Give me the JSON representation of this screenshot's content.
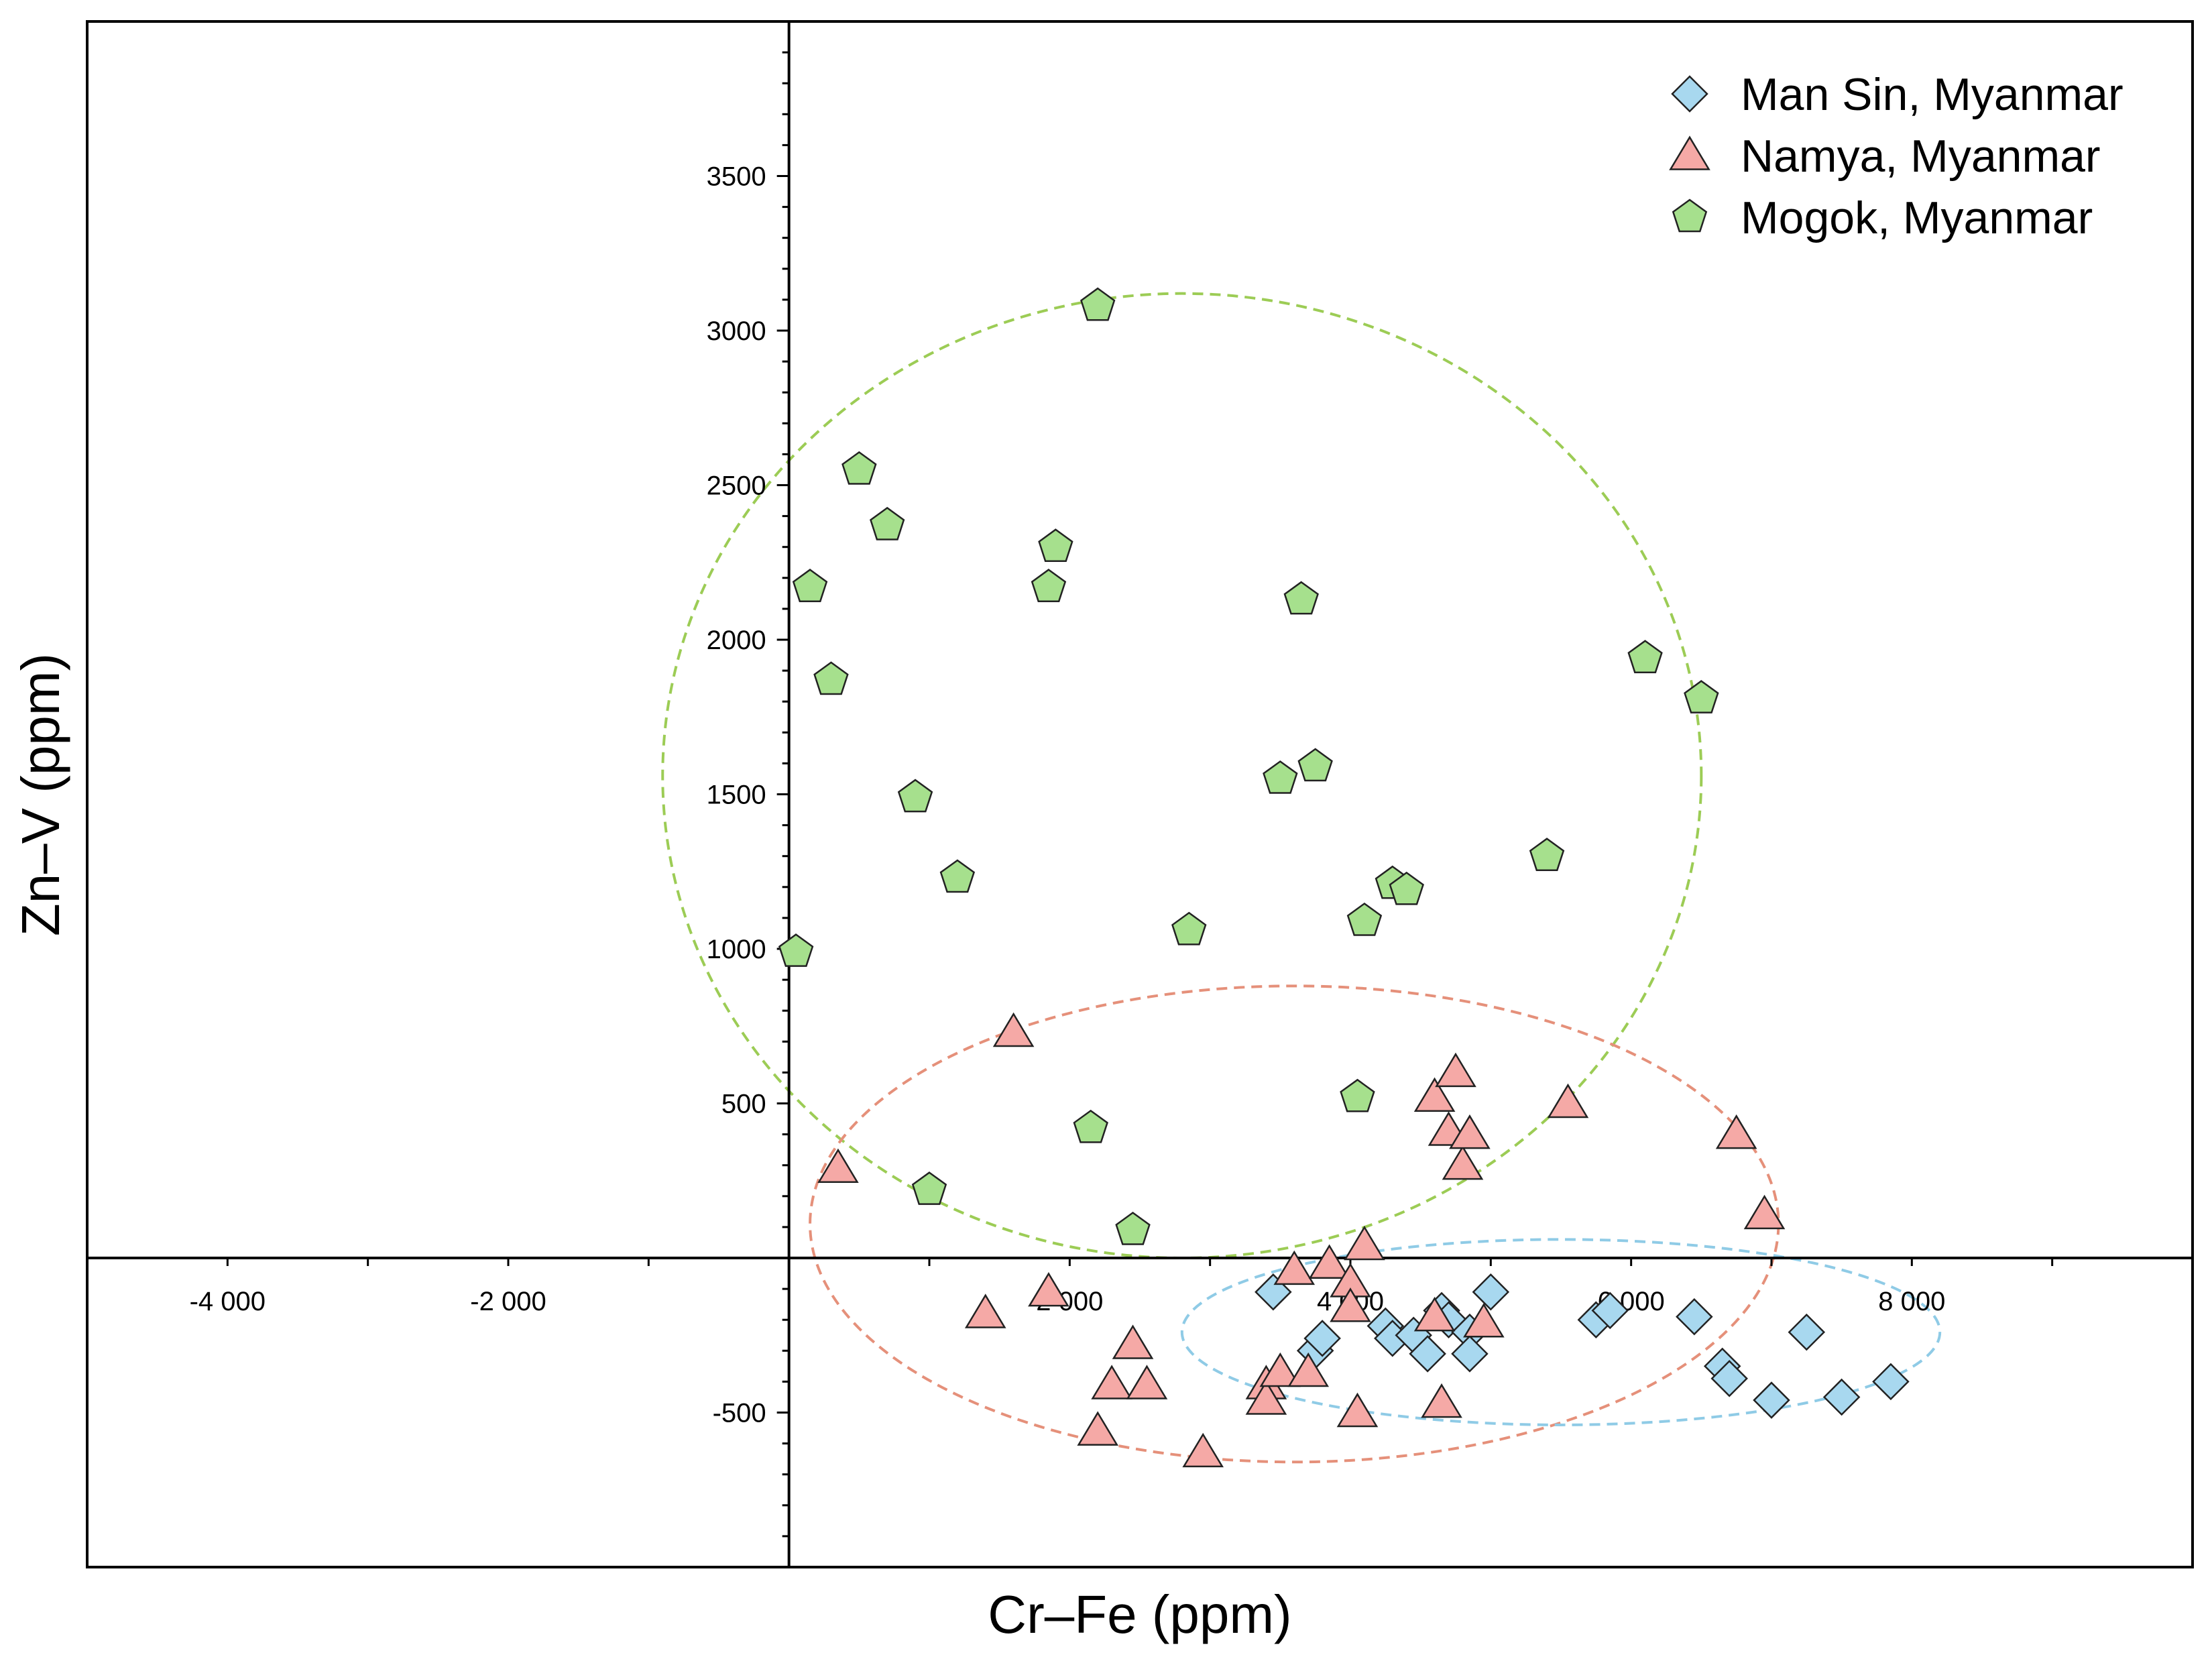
{
  "chart_data": {
    "type": "scatter",
    "title": "",
    "xlabel": "Cr–Fe (ppm)",
    "ylabel": "Zn–V (ppm)",
    "xlim": [
      -5000,
      10000
    ],
    "ylim": [
      -1000,
      4000
    ],
    "x_ticks": [
      {
        "value": -4000,
        "label": "-4 000"
      },
      {
        "value": -2000,
        "label": "-2 000"
      },
      {
        "value": 2000,
        "label": "2 000"
      },
      {
        "value": 4000,
        "label": "4 000"
      },
      {
        "value": 6000,
        "label": "6 000"
      },
      {
        "value": 8000,
        "label": "8 000"
      }
    ],
    "y_ticks": [
      {
        "value": -500,
        "label": "-500"
      },
      {
        "value": 500,
        "label": "500"
      },
      {
        "value": 1000,
        "label": "1000"
      },
      {
        "value": 1500,
        "label": "1500"
      },
      {
        "value": 2000,
        "label": "2000"
      },
      {
        "value": 2500,
        "label": "2500"
      },
      {
        "value": 3000,
        "label": "3000"
      },
      {
        "value": 3500,
        "label": "3500"
      }
    ],
    "grid": false,
    "legend_position": "top-right",
    "series": [
      {
        "name": "Man Sin, Myanmar",
        "marker": "diamond",
        "color": "#a8d8ef",
        "points": [
          [
            3450,
            -110
          ],
          [
            3750,
            -300
          ],
          [
            3800,
            -260
          ],
          [
            4250,
            -220
          ],
          [
            4300,
            -260
          ],
          [
            4450,
            -250
          ],
          [
            4550,
            -310
          ],
          [
            4650,
            -170
          ],
          [
            4700,
            -200
          ],
          [
            4850,
            -240
          ],
          [
            4850,
            -310
          ],
          [
            5000,
            -110
          ],
          [
            5750,
            -200
          ],
          [
            5850,
            -170
          ],
          [
            6450,
            -190
          ],
          [
            6650,
            -350
          ],
          [
            6700,
            -390
          ],
          [
            7000,
            -460
          ],
          [
            7250,
            -240
          ],
          [
            7500,
            -450
          ],
          [
            7850,
            -400
          ]
        ]
      },
      {
        "name": "Namya, Myanmar",
        "marker": "triangle",
        "color": "#f5a9a6",
        "points": [
          [
            350,
            290
          ],
          [
            1400,
            -180
          ],
          [
            1600,
            730
          ],
          [
            1850,
            -110
          ],
          [
            2200,
            -560
          ],
          [
            2300,
            -410
          ],
          [
            2450,
            -280
          ],
          [
            2550,
            -410
          ],
          [
            2950,
            -630
          ],
          [
            3400,
            -410
          ],
          [
            3400,
            -460
          ],
          [
            3500,
            -370
          ],
          [
            3600,
            -40
          ],
          [
            3700,
            -370
          ],
          [
            3850,
            -20
          ],
          [
            4000,
            -80
          ],
          [
            4000,
            -160
          ],
          [
            4050,
            -500
          ],
          [
            4100,
            40
          ],
          [
            4600,
            -190
          ],
          [
            4600,
            520
          ],
          [
            4650,
            -470
          ],
          [
            4700,
            410
          ],
          [
            4750,
            600
          ],
          [
            4800,
            300
          ],
          [
            4850,
            400
          ],
          [
            4950,
            -210
          ],
          [
            5550,
            500
          ],
          [
            6750,
            400
          ],
          [
            6950,
            140
          ]
        ]
      },
      {
        "name": "Mogok, Myanmar",
        "marker": "pentagon",
        "color": "#a6e08d",
        "points": [
          [
            50,
            990
          ],
          [
            150,
            2170
          ],
          [
            300,
            1870
          ],
          [
            500,
            2550
          ],
          [
            700,
            2370
          ],
          [
            900,
            1490
          ],
          [
            1000,
            220
          ],
          [
            1200,
            1230
          ],
          [
            1850,
            2170
          ],
          [
            1900,
            2300
          ],
          [
            2150,
            420
          ],
          [
            2200,
            3080
          ],
          [
            2450,
            90
          ],
          [
            2850,
            1060
          ],
          [
            3500,
            1550
          ],
          [
            3650,
            2130
          ],
          [
            3750,
            1590
          ],
          [
            4050,
            520
          ],
          [
            4100,
            1090
          ],
          [
            4300,
            1210
          ],
          [
            4400,
            1190
          ],
          [
            5400,
            1300
          ],
          [
            6100,
            1940
          ],
          [
            6500,
            1810
          ]
        ]
      }
    ],
    "ellipses": [
      {
        "series": "Mogok, Myanmar",
        "color": "#9ccc55",
        "center": [
          2800,
          1560
        ],
        "radii": [
          3700,
          1560
        ]
      },
      {
        "series": "Namya, Myanmar",
        "color": "#e5907a",
        "center": [
          3600,
          110
        ],
        "radii": [
          3450,
          770
        ]
      },
      {
        "series": "Man Sin, Myanmar",
        "color": "#8fcbe6",
        "center": [
          5500,
          -240
        ],
        "radii": [
          2700,
          300
        ]
      }
    ]
  }
}
